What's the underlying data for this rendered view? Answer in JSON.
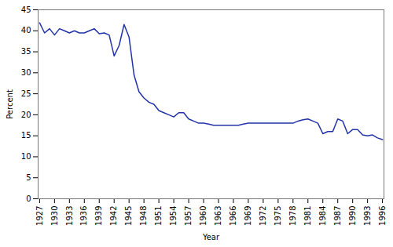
{
  "chart_data": {
    "type": "line",
    "xlabel": "Year",
    "ylabel": "Percent",
    "color": "#2233aa",
    "x": [
      1927,
      1928,
      1929,
      1930,
      1931,
      1932,
      1933,
      1934,
      1935,
      1936,
      1937,
      1938,
      1939,
      1940,
      1941,
      1942,
      1943,
      1944,
      1945,
      1946,
      1947,
      1948,
      1949,
      1950,
      1951,
      1952,
      1953,
      1954,
      1955,
      1956,
      1957,
      1958,
      1959,
      1960,
      1961,
      1962,
      1963,
      1964,
      1965,
      1966,
      1967,
      1968,
      1969,
      1970,
      1971,
      1972,
      1973,
      1974,
      1975,
      1976,
      1977,
      1978,
      1979,
      1980,
      1981,
      1982,
      1983,
      1984,
      1985,
      1986,
      1987,
      1988,
      1989,
      1990,
      1991,
      1992,
      1993,
      1994,
      1995,
      1996
    ],
    "values": [
      41.9,
      39.5,
      40.5,
      39.0,
      40.5,
      40.0,
      39.5,
      40.0,
      39.5,
      39.5,
      40.0,
      40.5,
      39.3,
      39.5,
      39.0,
      34.0,
      36.5,
      41.5,
      38.5,
      29.5,
      25.5,
      24.0,
      23.0,
      22.5,
      21.0,
      20.5,
      20.0,
      19.5,
      20.5,
      20.5,
      19.0,
      18.5,
      18.0,
      18.0,
      17.8,
      17.5,
      17.5,
      17.5,
      17.5,
      17.5,
      17.5,
      17.8,
      18.0,
      18.0,
      18.0,
      18.0,
      18.0,
      18.0,
      18.0,
      18.0,
      18.0,
      18.0,
      18.5,
      18.8,
      19.0,
      18.5,
      18.0,
      15.5,
      16.0,
      16.0,
      19.0,
      18.5,
      15.5,
      16.5,
      16.5,
      15.2,
      15.0,
      15.2,
      14.5,
      14.1
    ],
    "xlim": [
      1926.7,
      1996.3
    ],
    "xticks": [
      1927,
      1930,
      1933,
      1936,
      1939,
      1942,
      1945,
      1948,
      1951,
      1954,
      1957,
      1960,
      1963,
      1966,
      1969,
      1972,
      1975,
      1978,
      1981,
      1984,
      1987,
      1990,
      1993,
      1996
    ],
    "ylim": [
      0,
      45
    ],
    "yticks": [
      0,
      5,
      10,
      15,
      20,
      25,
      30,
      35,
      40,
      45
    ],
    "grid": false
  }
}
